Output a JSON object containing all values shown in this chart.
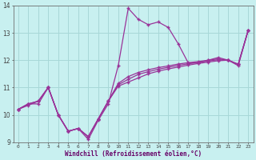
{
  "xlabel": "Windchill (Refroidissement éolien,°C)",
  "background_color": "#c8f0f0",
  "grid_color": "#a8d8d8",
  "line_color": "#993399",
  "hours": [
    0,
    1,
    2,
    3,
    4,
    5,
    6,
    7,
    8,
    9,
    10,
    11,
    12,
    13,
    14,
    15,
    16,
    17,
    18,
    19,
    20,
    21,
    22,
    23
  ],
  "curve_main": [
    10.2,
    10.4,
    10.4,
    11.0,
    10.0,
    9.4,
    9.5,
    9.1,
    9.8,
    10.4,
    11.8,
    13.9,
    13.5,
    13.3,
    13.4,
    13.2,
    12.6,
    11.9,
    11.9,
    12.0,
    12.1,
    12.0,
    11.8,
    13.1
  ],
  "curve_smooth1": [
    10.2,
    10.35,
    10.5,
    11.0,
    10.0,
    9.4,
    9.5,
    9.2,
    9.85,
    10.5,
    11.05,
    11.2,
    11.35,
    11.5,
    11.6,
    11.68,
    11.75,
    11.82,
    11.88,
    11.93,
    11.98,
    12.0,
    11.85,
    13.1
  ],
  "curve_smooth2": [
    10.2,
    10.4,
    10.5,
    11.0,
    10.0,
    9.4,
    9.5,
    9.2,
    9.85,
    10.5,
    11.1,
    11.3,
    11.48,
    11.58,
    11.67,
    11.74,
    11.81,
    11.87,
    11.92,
    11.97,
    12.02,
    12.0,
    11.85,
    13.1
  ],
  "curve_smooth3": [
    10.2,
    10.4,
    10.5,
    11.0,
    10.0,
    9.4,
    9.5,
    9.2,
    9.85,
    10.5,
    11.15,
    11.4,
    11.55,
    11.65,
    11.73,
    11.79,
    11.86,
    11.91,
    11.95,
    12.0,
    12.05,
    12.0,
    11.85,
    13.1
  ],
  "ylim": [
    9.0,
    14.0
  ],
  "yticks": [
    9,
    10,
    11,
    12,
    13,
    14
  ]
}
